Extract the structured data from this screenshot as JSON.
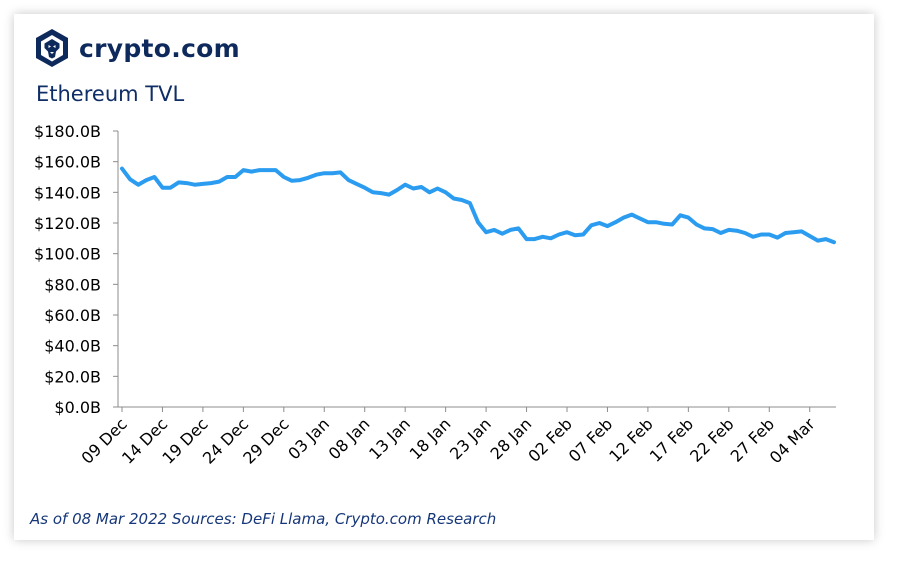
{
  "brand": {
    "name": "crypto.com",
    "logo_icon": "crypto-com-lion-shield-icon",
    "color": "#0e2a5c"
  },
  "footer": {
    "note": "As of 08 Mar 2022 Sources: DeFi Llama, Crypto.com Research"
  },
  "chart_data": {
    "type": "line",
    "title": "Ethereum TVL",
    "xlabel": "",
    "ylabel": "",
    "ylim": [
      0,
      180
    ],
    "y_ticks": [
      0,
      20,
      40,
      60,
      80,
      100,
      120,
      140,
      160,
      180
    ],
    "y_tick_labels": [
      "$0.0B",
      "$20.0B",
      "$40.0B",
      "$60.0B",
      "$80.0B",
      "$100.0B",
      "$120.0B",
      "$140.0B",
      "$160.0B",
      "$180.0B"
    ],
    "x_tick_labels": [
      "09 Dec",
      "14 Dec",
      "19 Dec",
      "24 Dec",
      "29 Dec",
      "03 Jan",
      "08 Jan",
      "13 Jan",
      "18 Jan",
      "23 Jan",
      "28 Jan",
      "02 Feb",
      "07 Feb",
      "12 Feb",
      "17 Feb",
      "22 Feb",
      "27 Feb",
      "04 Mar"
    ],
    "x_start": "09 Dec 2021",
    "x_end": "08 Mar 2022",
    "grid": false,
    "legend": "none",
    "line_color": "#2b9cf0",
    "series": [
      {
        "values": [
          155.5,
          148.5,
          145,
          148,
          150,
          143,
          143,
          146.5,
          146,
          145,
          145.5,
          146,
          147,
          150,
          150,
          154.5,
          153.5,
          154.5,
          154.5,
          154.5,
          150,
          147.5,
          148,
          149.5,
          151.5,
          152.5,
          152.5,
          153,
          148,
          145.5,
          143,
          140,
          139.5,
          138.5,
          141.5,
          145,
          142.5,
          143.5,
          140,
          142.5,
          140,
          136,
          135,
          133,
          120.5,
          114,
          115.5,
          113,
          115.5,
          116.5,
          109.5,
          109.5,
          111,
          110,
          112.5,
          114,
          112,
          112.5,
          118.5,
          120,
          118,
          120.5,
          123.5,
          125.5,
          123,
          120.5,
          120.5,
          119.5,
          119,
          125,
          123.5,
          119,
          116.5,
          116,
          113.5,
          115.5,
          115,
          113.5,
          111,
          112.5,
          112.5,
          110.5,
          113.5,
          114,
          114.5,
          111.5,
          108.5,
          109.5,
          107.5
        ]
      }
    ]
  }
}
